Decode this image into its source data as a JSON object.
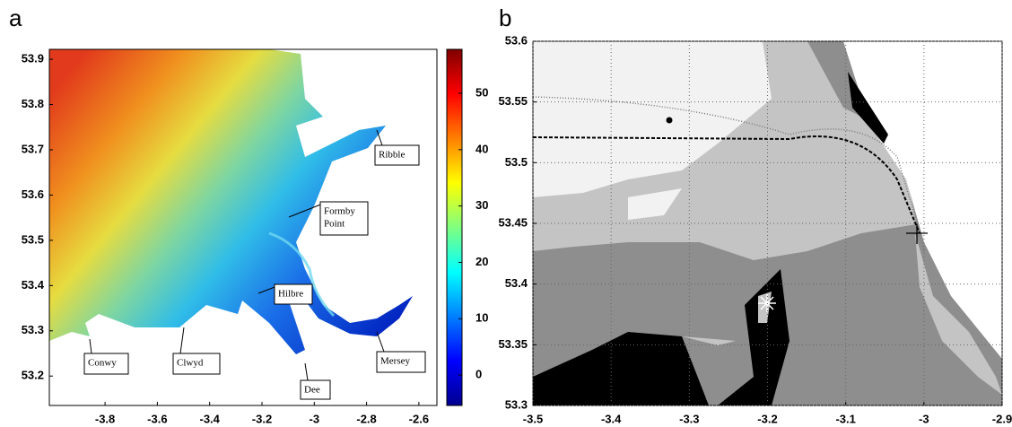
{
  "panels": [
    {
      "label": "a",
      "xlim": [
        -4.013,
        -2.531
      ],
      "ylim": [
        53.135,
        53.922
      ],
      "xticks": [
        -3.8,
        -3.6,
        -3.4,
        -3.2,
        -3,
        -2.8,
        -2.6
      ],
      "yticks": [
        53.2,
        53.3,
        53.4,
        53.5,
        53.6,
        53.7,
        53.8,
        53.9
      ],
      "grid": false,
      "colorbar": {
        "lim": [
          -5.4,
          57.8
        ],
        "ticks": [
          0,
          10,
          20,
          30,
          40,
          50
        ]
      },
      "annotations": [
        {
          "lines": [
            "Ribble"
          ]
        },
        {
          "lines": [
            "Formby",
            "Point"
          ]
        },
        {
          "lines": [
            "Hilbre"
          ]
        },
        {
          "lines": [
            "Conwy"
          ]
        },
        {
          "lines": [
            "Clwyd"
          ]
        },
        {
          "lines": [
            "Dee"
          ]
        },
        {
          "lines": [
            "Mersey"
          ]
        }
      ]
    },
    {
      "label": "b",
      "xlim": [
        -3.5,
        -2.9
      ],
      "ylim": [
        53.3,
        53.6
      ],
      "xticks": [
        -3.5,
        -3.4,
        -3.3,
        -3.2,
        -3.1,
        -3,
        -2.9
      ],
      "yticks": [
        53.3,
        53.35,
        53.4,
        53.45,
        53.5,
        53.55,
        53.6
      ],
      "grid": true
    }
  ]
}
